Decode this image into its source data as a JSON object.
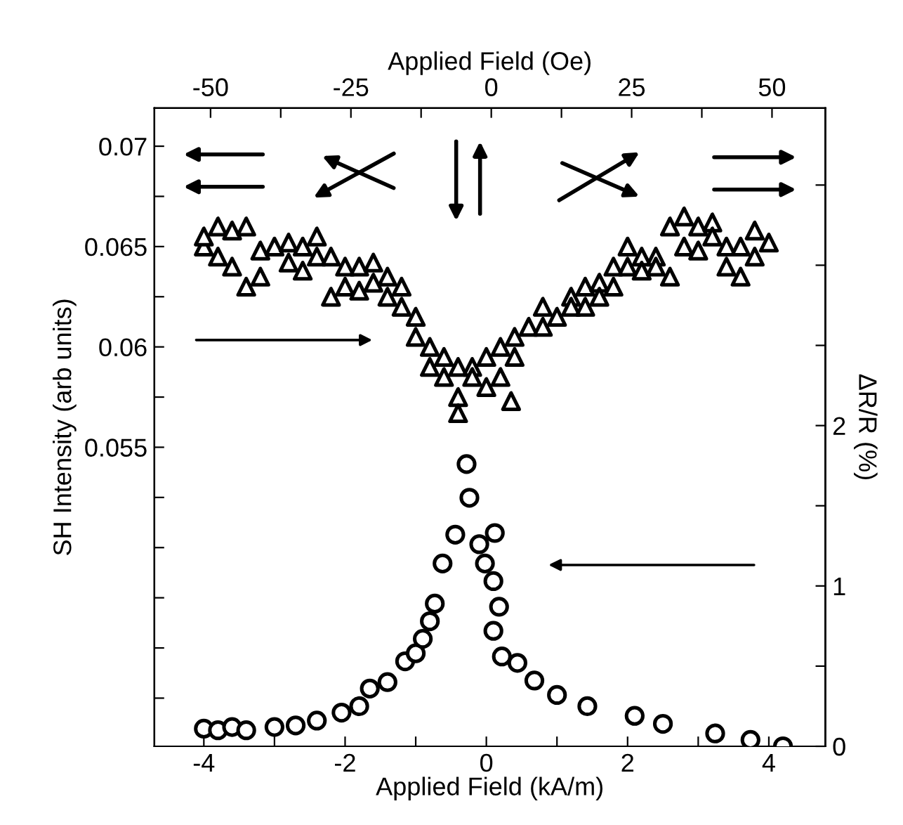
{
  "chart_data": {
    "type": "scatter",
    "xlabel": "Applied Field (kA/m)",
    "x2label": "Applied Field (Oe)",
    "ylabel": "SH Intensity (arb units)",
    "y2label": "ΔR/R (%)",
    "xlim": [
      -4.7,
      4.8
    ],
    "xticks": [
      -4,
      {
        "value": -3,
        "label": null
      },
      -2,
      {
        "value": -1,
        "label": null
      },
      0,
      {
        "value": 1,
        "label": null
      },
      2,
      {
        "value": 3,
        "label": null
      },
      4
    ],
    "x2lim": [
      -60,
      59.5
    ],
    "x2ticks": [
      -50,
      {
        "value": -37.5,
        "label": null
      },
      -25,
      {
        "value": -12.5,
        "label": null
      },
      0,
      {
        "value": 12.5,
        "label": null
      },
      25,
      {
        "value": 37.5,
        "label": null
      },
      50
    ],
    "ylim": [
      0.0401,
      0.0719
    ],
    "yticks": [
      {
        "value": 0.0425,
        "label": null
      },
      {
        "value": 0.045,
        "label": null
      },
      {
        "value": 0.0475,
        "label": null
      },
      {
        "value": 0.05,
        "label": null
      },
      {
        "value": 0.0525,
        "label": null
      },
      0.055,
      {
        "value": 0.0575,
        "label": null
      },
      0.06,
      {
        "value": 0.0625,
        "label": null
      },
      0.065,
      {
        "value": 0.0675,
        "label": null
      },
      0.07
    ],
    "y2lim": [
      0,
      3.98
    ],
    "y2ticks": [
      0,
      {
        "value": 0.5,
        "label": null
      },
      1,
      {
        "value": 1.5,
        "label": null
      },
      2,
      {
        "value": 2.5,
        "label": null
      },
      {
        "value": 3,
        "label": null
      },
      {
        "value": 3.5,
        "label": null
      }
    ],
    "grid": false,
    "legend": false,
    "series": [
      {
        "color": "#000000",
        "marker": "triangle",
        "axis": "y",
        "x": [
          -4.0,
          -4.0,
          -3.8,
          -3.8,
          -3.6,
          -3.6,
          -3.4,
          -3.4,
          -3.2,
          -3.2,
          -3.0,
          -2.8,
          -2.8,
          -2.6,
          -2.6,
          -2.4,
          -2.4,
          -2.2,
          -2.2,
          -2.0,
          -2.0,
          -1.8,
          -1.8,
          -1.6,
          -1.6,
          -1.4,
          -1.4,
          -1.2,
          -1.2,
          -1.0,
          -1.0,
          -0.8,
          -0.8,
          -0.6,
          -0.6,
          -0.4,
          -0.4,
          -0.4,
          -0.2,
          -0.2,
          0.0,
          0.0,
          0.2,
          0.2,
          0.35,
          0.4,
          0.4,
          0.6,
          0.8,
          0.8,
          1.0,
          1.2,
          1.2,
          1.4,
          1.4,
          1.6,
          1.6,
          1.8,
          1.8,
          2.0,
          2.0,
          2.2,
          2.2,
          2.4,
          2.4,
          2.6,
          2.6,
          2.8,
          2.8,
          3.0,
          3.0,
          3.2,
          3.2,
          3.4,
          3.4,
          3.6,
          3.6,
          3.8,
          3.8,
          4.0
        ],
        "values": [
          0.065,
          0.0655,
          0.066,
          0.0645,
          0.0658,
          0.064,
          0.066,
          0.063,
          0.0648,
          0.0635,
          0.065,
          0.0652,
          0.0642,
          0.065,
          0.0638,
          0.0655,
          0.0645,
          0.0645,
          0.0625,
          0.064,
          0.063,
          0.064,
          0.0628,
          0.0642,
          0.0632,
          0.0635,
          0.0625,
          0.063,
          0.062,
          0.0615,
          0.0605,
          0.06,
          0.059,
          0.0595,
          0.0585,
          0.059,
          0.0575,
          0.0567,
          0.059,
          0.0585,
          0.0595,
          0.058,
          0.06,
          0.0585,
          0.0573,
          0.0605,
          0.0595,
          0.061,
          0.062,
          0.061,
          0.0615,
          0.0625,
          0.062,
          0.063,
          0.062,
          0.0632,
          0.0625,
          0.064,
          0.063,
          0.065,
          0.064,
          0.0645,
          0.0638,
          0.0645,
          0.064,
          0.066,
          0.0635,
          0.0665,
          0.065,
          0.066,
          0.0648,
          0.0662,
          0.0655,
          0.065,
          0.064,
          0.065,
          0.0635,
          0.0658,
          0.0645,
          0.0652
        ]
      },
      {
        "color": "#000000",
        "marker": "circle",
        "axis": "y2",
        "x": [
          -4.0,
          -3.8,
          -3.6,
          -3.4,
          -3.0,
          -2.7,
          -2.4,
          -2.05,
          -1.8,
          -1.65,
          -1.4,
          -1.15,
          -1.0,
          -0.9,
          -0.8,
          -0.73,
          -0.62,
          -0.44,
          -0.24,
          -0.28,
          -0.1,
          0.12,
          -0.02,
          0.1,
          0.18,
          0.1,
          0.22,
          0.44,
          0.68,
          1.0,
          1.43,
          2.1,
          2.5,
          3.24,
          3.74,
          4.2
        ],
        "values": [
          0.11,
          0.1,
          0.12,
          0.1,
          0.12,
          0.13,
          0.16,
          0.21,
          0.25,
          0.36,
          0.4,
          0.53,
          0.58,
          0.67,
          0.78,
          0.89,
          1.14,
          1.32,
          1.55,
          1.76,
          1.26,
          1.33,
          1.14,
          1.03,
          0.87,
          0.72,
          0.56,
          0.52,
          0.41,
          0.32,
          0.25,
          0.19,
          0.14,
          0.08,
          0.04,
          0.0
        ]
      }
    ]
  }
}
